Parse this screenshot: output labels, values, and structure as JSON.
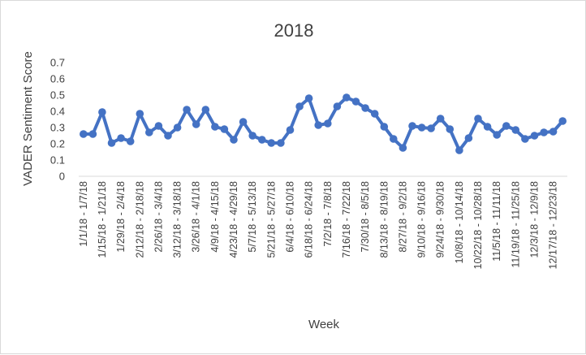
{
  "chart_data": {
    "type": "line",
    "title": "2018",
    "xlabel": "Week",
    "ylabel": "VADER Sentiment Score",
    "ylim": [
      0,
      0.7
    ],
    "yticks": [
      "0",
      "0.1",
      "0.2",
      "0.3",
      "0.4",
      "0.5",
      "0.6",
      "0.7"
    ],
    "grid": false,
    "legend": "none",
    "series_color": "#4472c4",
    "x_tick_labels": [
      "1/1/18 - 1/7/18",
      "1/15/18 - 1/21/18",
      "1/29/18 - 2/4/18",
      "2/12/18 - 2/18/18",
      "2/26/18 - 3/4/18",
      "3/12/18 - 3/18/18",
      "3/26/18 - 4/1/18",
      "4/9/18 - 4/15/18",
      "4/23/18 - 4/29/18",
      "5/7/18 - 5/13/18",
      "5/21/18 - 5/27/18",
      "6/4/18 - 6/10/18",
      "6/18/18 - 6/24/18",
      "7/2/18 - 7/8/18",
      "7/16/18 - 7/22/18",
      "7/30/18 - 8/5/18",
      "8/13/18 - 8/19/18",
      "8/27/18 - 9/2/18",
      "9/10/18 - 9/16/18",
      "9/24/18 - 9/30/18",
      "10/8/18 - 10/14/18",
      "10/22/18 - 10/28/18",
      "11/5/18 - 11/11/18",
      "11/19/18 - 11/25/18",
      "12/3/18 - 12/9/18",
      "12/17/18 - 12/23/18"
    ],
    "series": [
      {
        "values": [
          0.26,
          0.26,
          0.395,
          0.205,
          0.235,
          0.215,
          0.385,
          0.27,
          0.31,
          0.25,
          0.3,
          0.41,
          0.32,
          0.41,
          0.305,
          0.29,
          0.225,
          0.335,
          0.25,
          0.225,
          0.205,
          0.205,
          0.285,
          0.43,
          0.48,
          0.315,
          0.325,
          0.43,
          0.485,
          0.46,
          0.42,
          0.385,
          0.305,
          0.23,
          0.175,
          0.31,
          0.3,
          0.295,
          0.355,
          0.29,
          0.16,
          0.235,
          0.355,
          0.305,
          0.255,
          0.31,
          0.285,
          0.23,
          0.25,
          0.27,
          0.275,
          0.34
        ]
      }
    ]
  }
}
